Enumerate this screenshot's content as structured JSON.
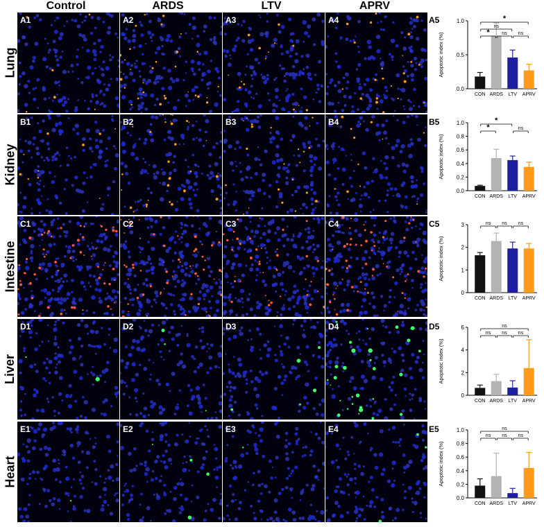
{
  "columns": [
    "Control",
    "ARDS",
    "LTV",
    "APRV"
  ],
  "rows": [
    {
      "label": "Lung",
      "panels": [
        "A1",
        "A2",
        "A3",
        "A4"
      ],
      "chart_label": "A5"
    },
    {
      "label": "Kidney",
      "panels": [
        "B1",
        "B2",
        "B3",
        "B4"
      ],
      "chart_label": "B5"
    },
    {
      "label": "Intestine",
      "panels": [
        "C1",
        "C2",
        "C3",
        "C4"
      ],
      "chart_label": "C5"
    },
    {
      "label": "Liver",
      "panels": [
        "D1",
        "D2",
        "D3",
        "D4"
      ],
      "chart_label": "D5"
    },
    {
      "label": "Heart",
      "panels": [
        "E1",
        "E2",
        "E3",
        "E4"
      ],
      "chart_label": "E5"
    }
  ],
  "colors": {
    "CON": "#111111",
    "ARDS": "#b3b3b3",
    "LTV": "#1e1ea0",
    "APRV": "#ff9a1a"
  },
  "chart_data": [
    {
      "type": "bar",
      "panel": "A5",
      "categories": [
        "CON",
        "ARDS",
        "LTV",
        "APRV"
      ],
      "values": [
        0.18,
        0.78,
        0.46,
        0.27
      ],
      "errors": [
        0.06,
        0.19,
        0.11,
        0.09
      ],
      "ylabel": "Apoptotic index (%)",
      "ylim": [
        0,
        1.0
      ],
      "yticks": [
        0.0,
        0.5,
        1.0
      ],
      "ytick_labels": [
        "0.0",
        "0.5",
        "1.0"
      ],
      "comparisons": [
        {
          "from": 0,
          "to": 3,
          "label": "*"
        },
        {
          "from": 0,
          "to": 2,
          "label": "ns"
        },
        {
          "from": 0,
          "to": 1,
          "label": "*"
        },
        {
          "from": 1,
          "to": 2,
          "label": "ns"
        },
        {
          "from": 2,
          "to": 3,
          "label": "ns"
        }
      ]
    },
    {
      "type": "bar",
      "panel": "B5",
      "categories": [
        "CON",
        "ARDS",
        "LTV",
        "APRV"
      ],
      "values": [
        0.07,
        0.48,
        0.45,
        0.35
      ],
      "errors": [
        0.01,
        0.13,
        0.06,
        0.07
      ],
      "ylabel": "Apoptotic index (%)",
      "ylim": [
        0,
        1.0
      ],
      "yticks": [
        0.0,
        0.2,
        0.4,
        0.6,
        0.8,
        1.0
      ],
      "ytick_labels": [
        "0.0",
        "0.2",
        "0.4",
        "0.6",
        "0.8",
        "1.0"
      ],
      "comparisons": [
        {
          "from": 0,
          "to": 2,
          "label": "*"
        },
        {
          "from": 0,
          "to": 1,
          "label": "*"
        },
        {
          "from": 2,
          "to": 3,
          "label": "ns"
        }
      ]
    },
    {
      "type": "bar",
      "panel": "C5",
      "categories": [
        "CON",
        "ARDS",
        "LTV",
        "APRV"
      ],
      "values": [
        1.65,
        2.28,
        1.95,
        1.95
      ],
      "errors": [
        0.12,
        0.35,
        0.28,
        0.22
      ],
      "ylabel": "Apoptotic index (%)",
      "ylim": [
        0,
        3
      ],
      "yticks": [
        0,
        1,
        2,
        3
      ],
      "ytick_labels": [
        "0",
        "1",
        "2",
        "3"
      ],
      "comparisons": [
        {
          "from": 0,
          "to": 1,
          "label": "ns"
        },
        {
          "from": 1,
          "to": 2,
          "label": "ns"
        },
        {
          "from": 2,
          "to": 3,
          "label": "ns"
        }
      ]
    },
    {
      "type": "bar",
      "panel": "D5",
      "categories": [
        "CON",
        "ARDS",
        "LTV",
        "APRV"
      ],
      "values": [
        0.65,
        1.25,
        0.68,
        2.4
      ],
      "errors": [
        0.25,
        0.6,
        0.6,
        2.5
      ],
      "ylabel": "Apoptotic index (%)",
      "ylim": [
        0,
        6
      ],
      "yticks": [
        0,
        2,
        4,
        6
      ],
      "ytick_labels": [
        "0",
        "2",
        "4",
        "6"
      ],
      "comparisons": [
        {
          "from": 0,
          "to": 3,
          "label": "ns"
        },
        {
          "from": 0,
          "to": 1,
          "label": "ns"
        },
        {
          "from": 1,
          "to": 2,
          "label": "ns"
        },
        {
          "from": 2,
          "to": 3,
          "label": "ns"
        }
      ]
    },
    {
      "type": "bar",
      "panel": "E5",
      "categories": [
        "CON",
        "ARDS",
        "LTV",
        "APRV"
      ],
      "values": [
        0.18,
        0.32,
        0.07,
        0.44
      ],
      "errors": [
        0.1,
        0.34,
        0.07,
        0.23
      ],
      "ylabel": "Apoptotic index (%)",
      "ylim": [
        0,
        1.0
      ],
      "yticks": [
        0.0,
        0.2,
        0.4,
        0.6,
        0.8,
        1.0
      ],
      "ytick_labels": [
        "0.0",
        "0.2",
        "0.4",
        "0.6",
        "0.8",
        "1.0"
      ],
      "comparisons": [
        {
          "from": 0,
          "to": 3,
          "label": "ns"
        },
        {
          "from": 0,
          "to": 1,
          "label": "ns"
        },
        {
          "from": 1,
          "to": 2,
          "label": "ns"
        },
        {
          "from": 2,
          "to": 3,
          "label": "ns"
        }
      ]
    }
  ]
}
